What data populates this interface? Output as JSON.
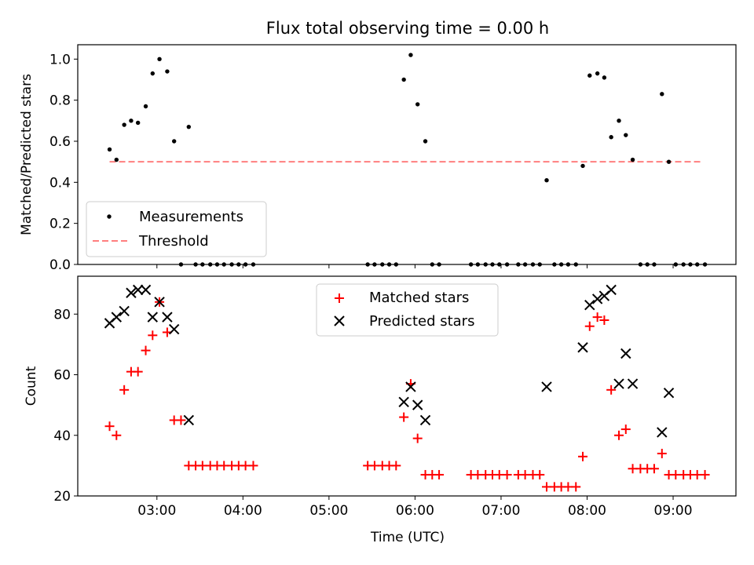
{
  "chart_data": [
    {
      "type": "scatter",
      "title": "Flux total observing time = 0.00 h",
      "xlabel": "",
      "ylabel": "Matched/Predicted stars",
      "xlim": [
        2.08,
        9.73
      ],
      "ylim": [
        0.0,
        1.07
      ],
      "xticks": [
        3,
        4,
        5,
        6,
        7,
        8,
        9
      ],
      "yticks": [
        0.0,
        0.2,
        0.4,
        0.6,
        0.8,
        1.0
      ],
      "ytick_labels": [
        "0.0",
        "0.2",
        "0.4",
        "0.6",
        "0.8",
        "1.0"
      ],
      "legend_position": "lower-left",
      "threshold": {
        "name": "Threshold",
        "value": 0.5,
        "x_range": [
          2.45,
          9.33
        ],
        "color": "#ff7f7f"
      },
      "series": [
        {
          "name": "Measurements",
          "color": "#000000",
          "x": [
            2.45,
            2.53,
            2.62,
            2.7,
            2.78,
            2.87,
            2.95,
            3.03,
            3.12,
            3.2,
            3.28,
            3.37,
            3.45,
            3.53,
            3.62,
            3.7,
            3.78,
            3.87,
            3.95,
            4.03,
            4.12,
            5.45,
            5.53,
            5.62,
            5.7,
            5.78,
            5.87,
            5.95,
            6.03,
            6.12,
            6.2,
            6.28,
            6.65,
            6.73,
            6.82,
            6.9,
            6.98,
            7.07,
            7.2,
            7.28,
            7.37,
            7.45,
            7.53,
            7.62,
            7.7,
            7.78,
            7.87,
            7.95,
            8.03,
            8.12,
            8.2,
            8.28,
            8.37,
            8.45,
            8.53,
            8.62,
            8.7,
            8.78,
            8.87,
            8.95,
            9.03,
            9.12,
            9.2,
            9.28,
            9.37
          ],
          "y": [
            0.56,
            0.51,
            0.68,
            0.7,
            0.69,
            0.77,
            0.93,
            1.0,
            0.94,
            0.6,
            0.0,
            0.67,
            0.0,
            0.0,
            0.0,
            0.0,
            0.0,
            0.0,
            0.0,
            0.0,
            0.0,
            0.0,
            0.0,
            0.0,
            0.0,
            0.0,
            0.9,
            1.02,
            0.78,
            0.6,
            0.0,
            0.0,
            0.0,
            0.0,
            0.0,
            0.0,
            0.0,
            0.0,
            0.0,
            0.0,
            0.0,
            0.0,
            0.41,
            0.0,
            0.0,
            0.0,
            0.0,
            0.48,
            0.92,
            0.93,
            0.91,
            0.62,
            0.7,
            0.63,
            0.51,
            0.0,
            0.0,
            0.0,
            0.83,
            0.5,
            0.0,
            0.0,
            0.0,
            0.0,
            0.0
          ]
        }
      ]
    },
    {
      "type": "scatter",
      "title": "",
      "xlabel": "Time (UTC)",
      "ylabel": "Count",
      "xlim": [
        2.08,
        9.73
      ],
      "ylim": [
        20.0,
        92.5
      ],
      "xticks": [
        3,
        4,
        5,
        6,
        7,
        8,
        9
      ],
      "xtick_labels": [
        "03:00",
        "04:00",
        "05:00",
        "06:00",
        "07:00",
        "08:00",
        "09:00"
      ],
      "yticks": [
        20,
        40,
        60,
        80
      ],
      "ytick_labels": [
        "20",
        "40",
        "60",
        "80"
      ],
      "legend_position": "upper-center",
      "series": [
        {
          "name": "Matched stars",
          "marker": "+",
          "color": "#ff0000",
          "x": [
            2.45,
            2.53,
            2.62,
            2.7,
            2.78,
            2.87,
            2.95,
            3.03,
            3.12,
            3.2,
            3.28,
            3.37,
            3.45,
            3.53,
            3.62,
            3.7,
            3.78,
            3.87,
            3.95,
            4.03,
            4.12,
            5.45,
            5.53,
            5.62,
            5.7,
            5.78,
            5.87,
            5.95,
            6.03,
            6.12,
            6.2,
            6.28,
            6.65,
            6.73,
            6.82,
            6.9,
            6.98,
            7.07,
            7.2,
            7.28,
            7.37,
            7.45,
            7.53,
            7.62,
            7.7,
            7.78,
            7.87,
            7.95,
            8.03,
            8.12,
            8.2,
            8.28,
            8.37,
            8.45,
            8.53,
            8.62,
            8.7,
            8.78,
            8.87,
            8.95,
            9.03,
            9.12,
            9.2,
            9.28,
            9.37
          ],
          "y": [
            43,
            40,
            55,
            61,
            61,
            68,
            73,
            84,
            74,
            45,
            45,
            30,
            30,
            30,
            30,
            30,
            30,
            30,
            30,
            30,
            30,
            30,
            30,
            30,
            30,
            30,
            46,
            57,
            39,
            27,
            27,
            27,
            27,
            27,
            27,
            27,
            27,
            27,
            27,
            27,
            27,
            27,
            23,
            23,
            23,
            23,
            23,
            33,
            76,
            79,
            78,
            55,
            40,
            42,
            29,
            29,
            29,
            29,
            34,
            27,
            27,
            27,
            27,
            27,
            27
          ]
        },
        {
          "name": "Predicted stars",
          "marker": "x",
          "color": "#000000",
          "x": [
            2.45,
            2.53,
            2.62,
            2.7,
            2.78,
            2.87,
            2.95,
            3.03,
            3.12,
            3.2,
            3.37,
            5.87,
            5.95,
            6.03,
            6.12,
            7.53,
            7.95,
            8.03,
            8.12,
            8.2,
            8.28,
            8.37,
            8.45,
            8.53,
            8.87,
            8.95
          ],
          "y": [
            77,
            79,
            81,
            87,
            88,
            88,
            79,
            84,
            79,
            75,
            45,
            51,
            56,
            50,
            45,
            56,
            69,
            83,
            85,
            86,
            88,
            57,
            67,
            57,
            41,
            54
          ]
        }
      ]
    }
  ]
}
